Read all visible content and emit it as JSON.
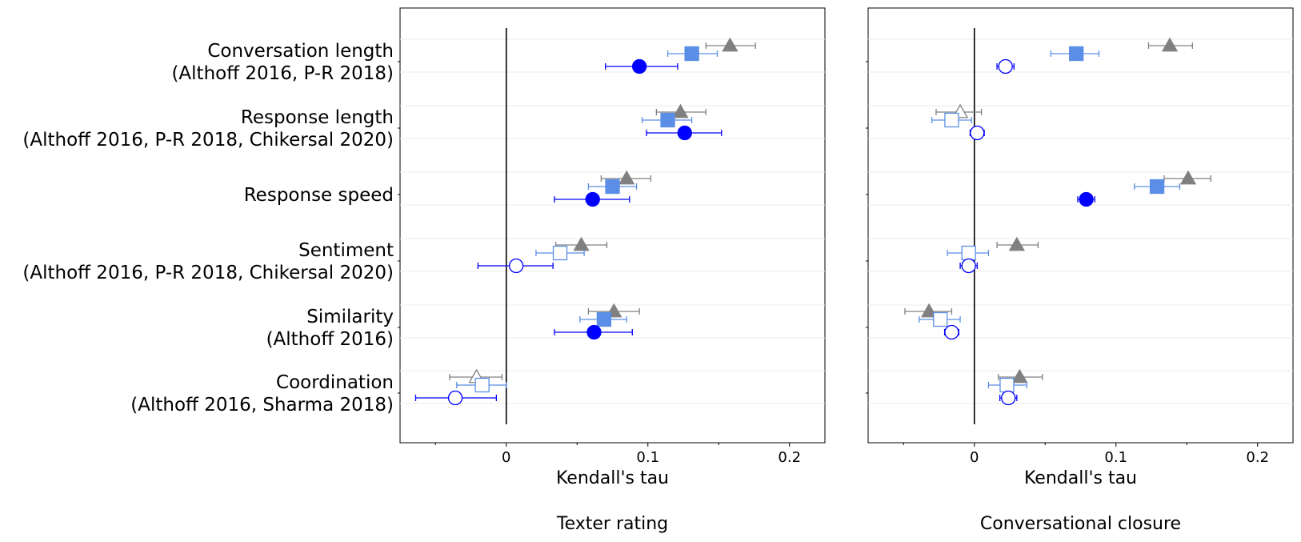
{
  "chart_data": [
    {
      "type": "scatter",
      "title": "Texter rating",
      "xlabel": "Kendall's tau",
      "xlim": [
        -0.075,
        0.225
      ],
      "xticks": [
        0,
        0.1,
        0.2
      ],
      "xtick_labels": [
        "0",
        "0.1",
        "0.2"
      ],
      "categories": [
        "Conversation length\n(Althoff 2016, P-R 2018)",
        "Response length\n(Althoff 2016, P-R 2018, Chikersal 2020)",
        "Response speed",
        "Sentiment\n(Althoff 2016, P-R 2018, Chikersal 2020)",
        "Similarity\n(Althoff 2016)",
        "Coordination\n(Althoff 2016, Sharma 2018)"
      ],
      "series": [
        {
          "marker": "triangle",
          "color": "#808080",
          "values": [
            0.158,
            0.123,
            0.085,
            0.053,
            0.076,
            -0.021
          ],
          "ci_low": [
            0.141,
            0.106,
            0.067,
            0.035,
            0.058,
            -0.04
          ],
          "ci_high": [
            0.176,
            0.141,
            0.102,
            0.071,
            0.094,
            -0.003
          ],
          "filled": [
            true,
            true,
            true,
            true,
            true,
            false
          ]
        },
        {
          "marker": "square",
          "color": "#5b8ee6",
          "values": [
            0.131,
            0.114,
            0.075,
            0.038,
            0.069,
            -0.017
          ],
          "ci_low": [
            0.114,
            0.096,
            0.058,
            0.021,
            0.052,
            -0.035
          ],
          "ci_high": [
            0.149,
            0.131,
            0.092,
            0.055,
            0.085,
            0.0
          ],
          "filled": [
            true,
            true,
            true,
            false,
            true,
            false
          ]
        },
        {
          "marker": "circle",
          "color": "#0000ff",
          "values": [
            0.094,
            0.126,
            0.061,
            0.007,
            0.062,
            -0.036
          ],
          "ci_low": [
            0.07,
            0.099,
            0.034,
            -0.02,
            0.034,
            -0.064
          ],
          "ci_high": [
            0.121,
            0.152,
            0.087,
            0.033,
            0.089,
            -0.007
          ],
          "filled": [
            true,
            true,
            true,
            false,
            true,
            false
          ]
        }
      ]
    },
    {
      "type": "scatter",
      "title": "Conversational closure",
      "xlabel": "Kendall's tau",
      "xlim": [
        -0.075,
        0.225
      ],
      "xticks": [
        0,
        0.1,
        0.2
      ],
      "xtick_labels": [
        "0",
        "0.1",
        "0.2"
      ],
      "categories": [
        "Conversation length\n(Althoff 2016, P-R 2018)",
        "Response length\n(Althoff 2016, P-R 2018, Chikersal 2020)",
        "Response speed",
        "Sentiment\n(Althoff 2016, P-R 2018, Chikersal 2020)",
        "Similarity\n(Althoff 2016)",
        "Coordination\n(Althoff 2016, Sharma 2018)"
      ],
      "series": [
        {
          "marker": "triangle",
          "color": "#808080",
          "values": [
            0.138,
            -0.01,
            0.151,
            0.03,
            -0.032,
            0.032
          ],
          "ci_low": [
            0.123,
            -0.027,
            0.134,
            0.016,
            -0.049,
            0.017
          ],
          "ci_high": [
            0.154,
            0.005,
            0.167,
            0.045,
            -0.016,
            0.048
          ],
          "filled": [
            true,
            false,
            true,
            true,
            true,
            true
          ]
        },
        {
          "marker": "square",
          "color": "#5b8ee6",
          "values": [
            0.072,
            -0.016,
            0.129,
            -0.004,
            -0.024,
            0.023
          ],
          "ci_low": [
            0.054,
            -0.03,
            0.113,
            -0.019,
            -0.039,
            0.01
          ],
          "ci_high": [
            0.088,
            -0.002,
            0.145,
            0.01,
            -0.01,
            0.037
          ],
          "filled": [
            true,
            false,
            true,
            false,
            false,
            false
          ]
        },
        {
          "marker": "circle",
          "color": "#0000ff",
          "values": [
            0.022,
            0.002,
            0.079,
            -0.004,
            -0.016,
            0.024
          ],
          "ci_low": [
            0.016,
            -0.003,
            0.073,
            -0.01,
            -0.021,
            0.018
          ],
          "ci_high": [
            0.028,
            0.007,
            0.085,
            0.002,
            -0.011,
            0.03
          ],
          "filled": [
            false,
            false,
            true,
            false,
            false,
            false
          ]
        }
      ]
    }
  ]
}
